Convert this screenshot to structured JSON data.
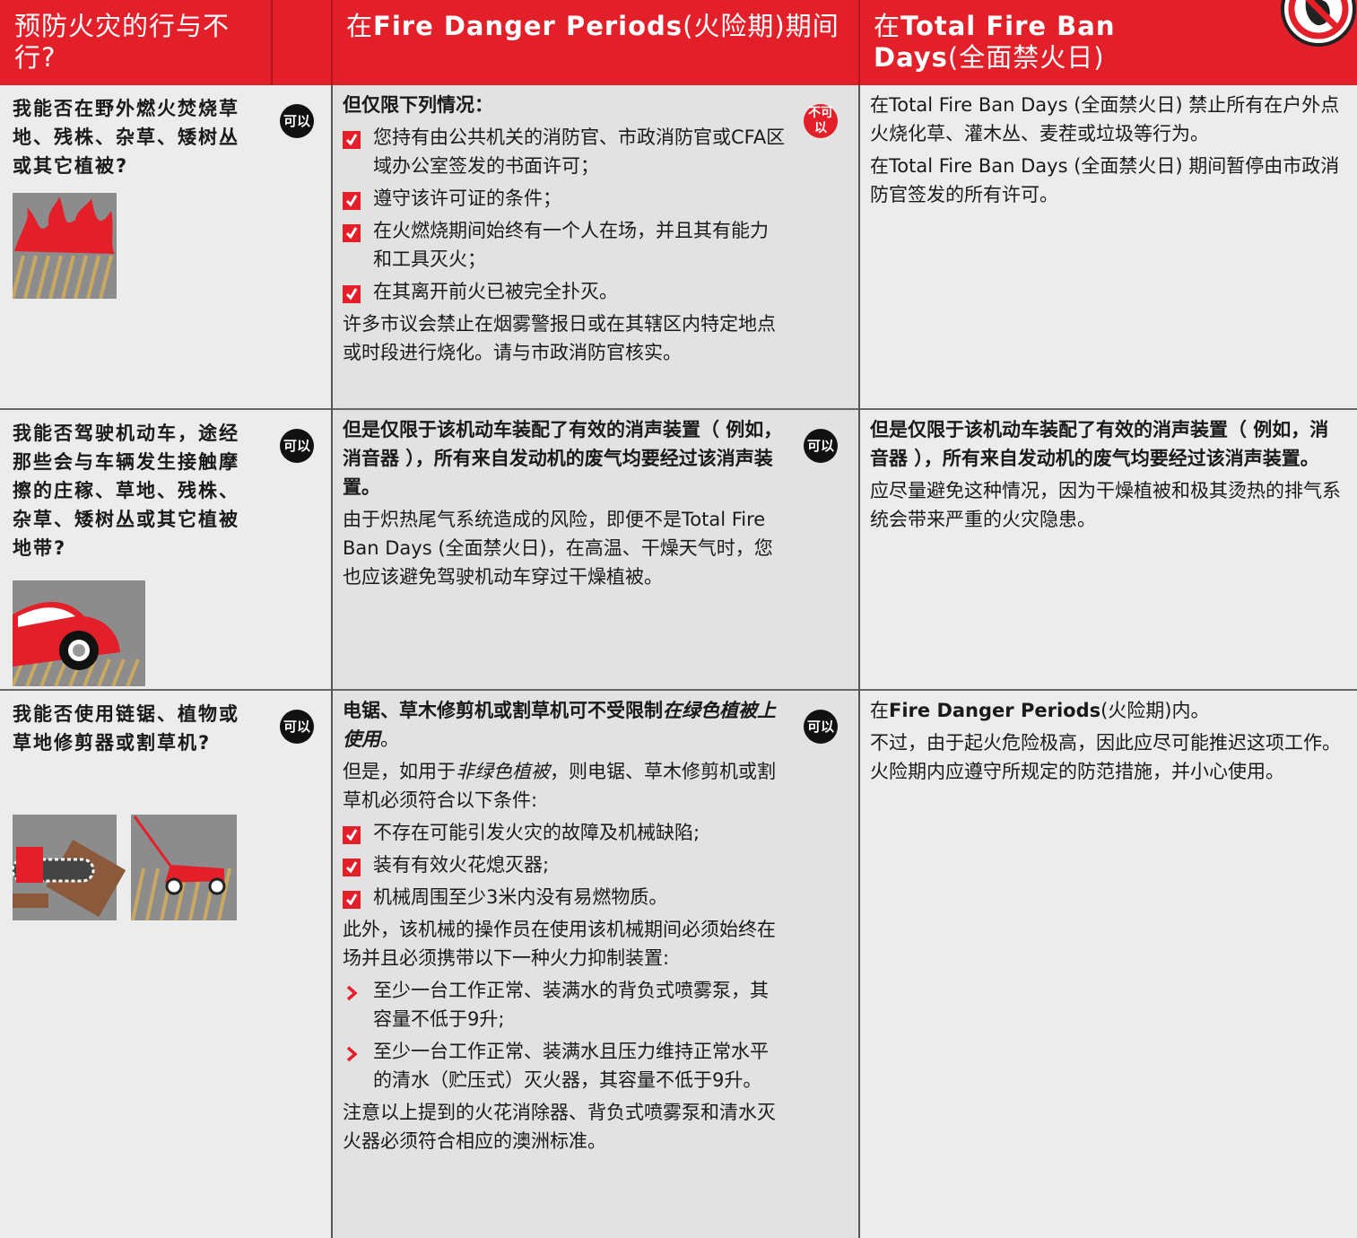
{
  "header": {
    "cells": [
      {
        "parts": [
          {
            "text": "预防火灾的行与不行?"
          }
        ]
      },
      {
        "parts": [
          {
            "text": "在"
          },
          {
            "text": "Fire Danger Periods",
            "bold": true
          },
          {
            "text": "(火险期)期间"
          }
        ]
      },
      {
        "parts": [
          {
            "text": "在"
          },
          {
            "text": "Total Fire Ban Days",
            "bold": true
          },
          {
            "text": "(全面禁火日)"
          }
        ]
      }
    ]
  },
  "rows": [
    {
      "question": "我能否在野外燃火焚烧草地、残株、杂草、矮树丛或其它植被?",
      "badge1": {
        "text": "可以",
        "color": "#111111"
      },
      "fire_danger": [
        {
          "text": "但仅限下列情况：",
          "bold": true
        },
        {
          "text": "您持有由公共机关的消防官、市政消防官或CFA区域办公室签发的书面许可；",
          "marker": "check"
        },
        {
          "text": "遵守该许可证的条件；",
          "marker": "check"
        },
        {
          "text": "在火燃烧期间始终有一个人在场，并且其有能力和工具灭火；",
          "marker": "check"
        },
        {
          "text": "在其离开前火已被完全扑灭。",
          "marker": "check"
        },
        {
          "text": "许多市议会禁止在烟雾警报日或在其辖区内特定地点或时段进行烧化。请与市政消防官核实。"
        }
      ],
      "badge2": {
        "text": "不可以",
        "color": "#e3202a"
      },
      "total_fire_ban": [
        {
          "text": "在Total Fire Ban Days (全面禁火日) 禁止所有在户外点火烧化草、灌木丛、麦茬或垃圾等行为。"
        },
        {
          "text": "在Total Fire Ban Days (全面禁火日) 期间暂停由市政消防官签发的所有许可。"
        }
      ]
    },
    {
      "question": "我能否驾驶机动车，途经那些会与车辆发生接触摩擦的庄稼、草地、残株、杂草、矮树丛或其它植被地带?",
      "badge1": {
        "text": "可以",
        "color": "#111111"
      },
      "fire_danger": [
        {
          "text": "但是仅限于该机动车装配了有效的消声装置（ 例如，消音器 ），所有来自发动机的废气均要经过该消声装置。",
          "bold": true
        },
        {
          "text": "由于炽热尾气系统造成的风险，即便不是Total Fire Ban Days (全面禁火日)，在高温、干燥天气时，您也应该避免驾驶机动车穿过干燥植被。"
        }
      ],
      "badge2": {
        "text": "可以",
        "color": "#111111"
      },
      "total_fire_ban": [
        {
          "text": "但是仅限于该机动车装配了有效的消声装置（ 例如，消音器 ），所有来自发动机的废气均要经过该消声装置。",
          "bold": true
        },
        {
          "text": "应尽量避免这种情况，因为干燥植被和极其烫热的排气系统会带来严重的火灾隐患。"
        }
      ]
    },
    {
      "question": "我能否使用链锯、植物或草地修剪器或割草机?",
      "badge1": {
        "text": "可以",
        "color": "#111111"
      },
      "fire_danger": [
        {
          "parts": [
            {
              "text": "电锯、草木修剪机或割草机可不受限制",
              "bold": true
            },
            {
              "text": "在绿色植被上使用",
              "bold": true,
              "italic": true
            },
            {
              "text": "。"
            }
          ]
        },
        {
          "parts": [
            {
              "text": "但是，如用于"
            },
            {
              "text": "非绿色植被",
              "italic": true
            },
            {
              "text": "，则电锯、草木修剪机或割草机必须符合以下条件:"
            }
          ]
        },
        {
          "text": "不存在可能引发火灾的故障及机械缺陷;",
          "marker": "check"
        },
        {
          "text": "装有有效火花熄灭器;",
          "marker": "check"
        },
        {
          "text": "机械周围至少3米内没有易燃物质。",
          "marker": "check"
        },
        {
          "text": "此外，该机械的操作员在使用该机械期间必须始终在场并且必须携带以下一种火力抑制装置:"
        },
        {
          "text": "至少一台工作正常、装满水的背负式喷雾泵，其容量不低于9升;",
          "marker": "arrow"
        },
        {
          "text": "至少一台工作正常、装满水且压力维持正常水平的清水（贮压式）灭火器，其容量不低于9升。",
          "marker": "arrow"
        },
        {
          "text": "注意以上提到的火花消除器、背负式喷雾泵和清水灭火器必须符合相应的澳洲标准。"
        }
      ],
      "badge2": {
        "text": "可以",
        "color": "#111111"
      },
      "total_fire_ban": [
        {
          "parts": [
            {
              "text": "在"
            },
            {
              "text": "Fire Danger Periods",
              "bold": true
            },
            {
              "text": "(火险期)内。"
            }
          ]
        },
        {
          "text": "不过，由于起火危险极高，因此应尽可能推迟这项工作。火险期内应遵守所规定的防范措施，并小心使用。"
        }
      ]
    }
  ]
}
